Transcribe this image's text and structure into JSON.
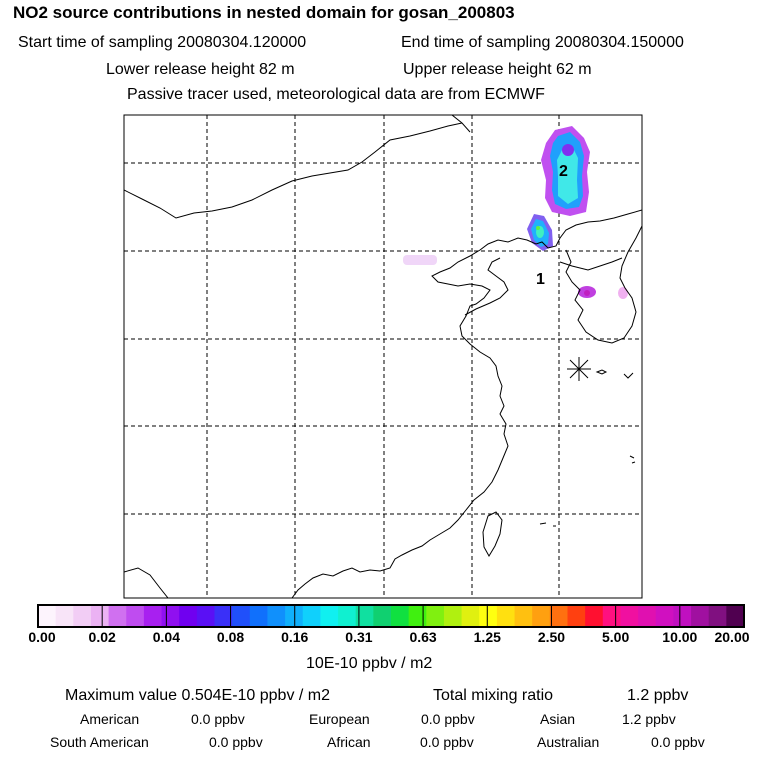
{
  "title": "NO2 source contributions in nested domain for gosan_200803",
  "header": {
    "start_time": "Start time of sampling 20080304.120000",
    "end_time": "End time of sampling 20080304.150000",
    "lower_release": "Lower release height   82 m",
    "upper_release": "Upper release height   62 m",
    "tracer_note": "Passive tracer used, meteorological data are from ECMWF"
  },
  "map": {
    "point_labels": [
      "1",
      "2"
    ],
    "colors": {
      "frame": "#000000",
      "coast": "#000000",
      "grid": "#000000"
    }
  },
  "colorbar": {
    "tick_labels": [
      "0.00",
      "0.02",
      "0.04",
      "0.08",
      "0.16",
      "0.31",
      "0.63",
      "1.25",
      "2.50",
      "5.00",
      "10.00",
      "20.00"
    ],
    "colors": [
      "#fdf4fd",
      "#f8e4f8",
      "#f2cdf5",
      "#ebb2f3",
      "#d070f0",
      "#bf4cf0",
      "#a820f0",
      "#9010f0",
      "#7000f0",
      "#5a10f5",
      "#3a30f8",
      "#2050fa",
      "#1070fc",
      "#1090fc",
      "#10b0fc",
      "#10d0fc",
      "#10f0f0",
      "#10f0d0",
      "#10e0a0",
      "#10d070",
      "#10e040",
      "#40f010",
      "#80f010",
      "#b0f010",
      "#e0f010",
      "#ffff10",
      "#ffe010",
      "#ffc010",
      "#ffa010",
      "#ff7010",
      "#ff4010",
      "#ff1030",
      "#ff1080",
      "#f010a0",
      "#e010b0",
      "#d010c0",
      "#c010c0",
      "#a010a0",
      "#801080",
      "#500050"
    ],
    "unit": "10E-10 ppbv / m2"
  },
  "summary": {
    "max_value": "Maximum value  0.504E-10 ppbv / m2",
    "total_mixing": "Total mixing ratio",
    "total_value": "1.2 ppbv",
    "regions": [
      {
        "name": "American",
        "value": "0.0 ppbv"
      },
      {
        "name": "European",
        "value": "0.0 ppbv"
      },
      {
        "name": "Asian",
        "value": "1.2 ppbv"
      },
      {
        "name": "South American",
        "value": "0.0 ppbv"
      },
      {
        "name": "African",
        "value": "0.0 ppbv"
      },
      {
        "name": "Australian",
        "value": "0.0 ppbv"
      }
    ]
  }
}
